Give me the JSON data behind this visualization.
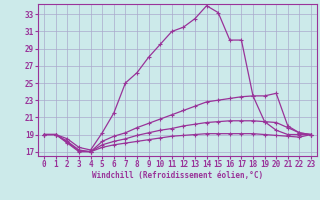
{
  "bg_color": "#cceaea",
  "grid_color": "#aaaacc",
  "line_color": "#993399",
  "xlabel": "Windchill (Refroidissement éolien,°C)",
  "xlim": [
    -0.5,
    23.5
  ],
  "ylim": [
    16.5,
    34.2
  ],
  "yticks": [
    17,
    19,
    21,
    23,
    25,
    27,
    29,
    31,
    33
  ],
  "xticks": [
    0,
    1,
    2,
    3,
    4,
    5,
    6,
    7,
    8,
    9,
    10,
    11,
    12,
    13,
    14,
    15,
    16,
    17,
    18,
    19,
    20,
    21,
    22,
    23
  ],
  "curves": [
    {
      "x": [
        0,
        1,
        2,
        3,
        4,
        5,
        6,
        7,
        8,
        9,
        10,
        11,
        12,
        13,
        14,
        15,
        16,
        17,
        18,
        19,
        20,
        21,
        22,
        23
      ],
      "y": [
        19.0,
        19.0,
        18.5,
        17.5,
        17.2,
        19.2,
        21.5,
        25.0,
        26.2,
        28.0,
        29.5,
        31.0,
        31.5,
        32.5,
        34.0,
        33.2,
        30.0,
        30.0,
        23.5,
        20.5,
        19.5,
        19.0,
        19.0,
        19.0
      ]
    },
    {
      "x": [
        0,
        1,
        2,
        3,
        4,
        5,
        6,
        7,
        8,
        9,
        10,
        11,
        12,
        13,
        14,
        15,
        16,
        17,
        18,
        19,
        20,
        21,
        22,
        23
      ],
      "y": [
        19.0,
        19.0,
        18.2,
        17.2,
        17.0,
        18.2,
        18.8,
        19.2,
        19.8,
        20.3,
        20.8,
        21.3,
        21.8,
        22.3,
        22.8,
        23.0,
        23.2,
        23.4,
        23.5,
        23.5,
        23.8,
        20.0,
        19.2,
        19.0
      ]
    },
    {
      "x": [
        0,
        1,
        2,
        3,
        4,
        5,
        6,
        7,
        8,
        9,
        10,
        11,
        12,
        13,
        14,
        15,
        16,
        17,
        18,
        19,
        20,
        21,
        22,
        23
      ],
      "y": [
        19.0,
        19.0,
        18.1,
        17.1,
        17.0,
        17.8,
        18.2,
        18.5,
        18.9,
        19.2,
        19.5,
        19.7,
        20.0,
        20.2,
        20.4,
        20.5,
        20.6,
        20.6,
        20.6,
        20.5,
        20.4,
        19.8,
        19.2,
        19.0
      ]
    },
    {
      "x": [
        0,
        1,
        2,
        3,
        4,
        5,
        6,
        7,
        8,
        9,
        10,
        11,
        12,
        13,
        14,
        15,
        16,
        17,
        18,
        19,
        20,
        21,
        22,
        23
      ],
      "y": [
        19.0,
        19.0,
        18.0,
        17.0,
        17.0,
        17.5,
        17.8,
        18.0,
        18.2,
        18.4,
        18.6,
        18.8,
        18.9,
        19.0,
        19.1,
        19.1,
        19.1,
        19.1,
        19.1,
        19.0,
        18.9,
        18.8,
        18.7,
        19.0
      ]
    }
  ]
}
